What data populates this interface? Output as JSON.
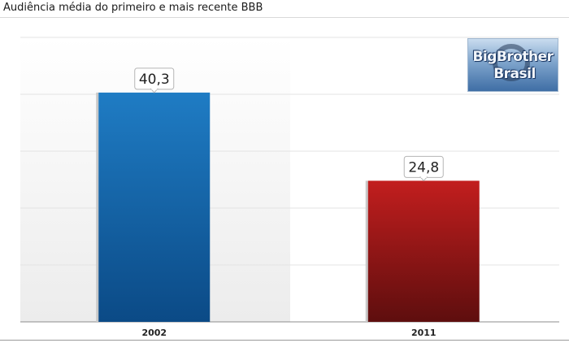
{
  "title": "Audiência média do primeiro e mais recente BBB",
  "logo": {
    "line1": "BigBrother",
    "line2": "Brasil"
  },
  "chart_data": {
    "type": "bar",
    "categories": [
      "2002",
      "2011"
    ],
    "values": [
      40.3,
      24.8
    ],
    "value_labels": [
      "40,3",
      "24,8"
    ],
    "colors": [
      "#1c6fb4",
      "#b01c1c"
    ],
    "ylim": [
      0,
      50
    ],
    "grid": true,
    "xlabel": "",
    "ylabel": ""
  }
}
